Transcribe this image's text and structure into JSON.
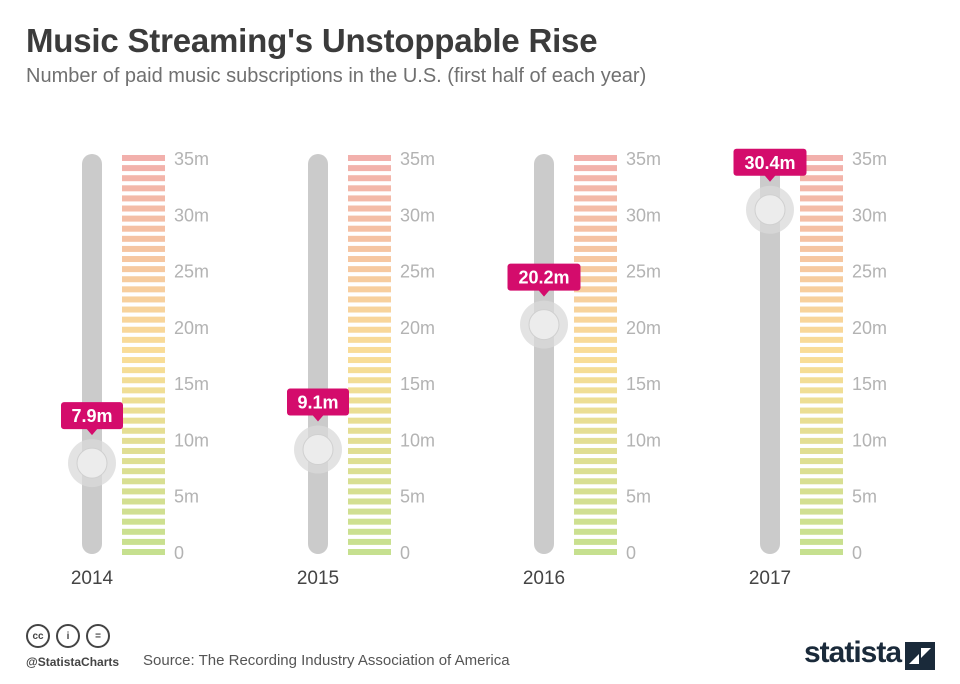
{
  "header": {
    "title": "Music Streaming's Unstoppable Rise",
    "subtitle": "Number of paid music subscriptions in the U.S. (first half of each year)"
  },
  "chart_data": {
    "type": "bar",
    "categories": [
      "2014",
      "2015",
      "2016",
      "2017"
    ],
    "values": [
      7.9,
      9.1,
      20.2,
      30.4
    ],
    "value_labels": [
      "7.9m",
      "9.1m",
      "20.2m",
      "30.4m"
    ],
    "ylim": [
      0,
      35
    ],
    "ticks": [
      0,
      5,
      10,
      15,
      20,
      25,
      30,
      35
    ],
    "tick_labels": [
      "0",
      "5m",
      "10m",
      "15m",
      "20m",
      "25m",
      "30m",
      "35m"
    ],
    "style": "slider",
    "scale_colors": {
      "low": "#c6e08f",
      "mid": "#f9dd97",
      "high": "#f2b0ac"
    },
    "label_color": "#d40c6c",
    "track_color": "#cbcbcb"
  },
  "footer": {
    "cc_icons": [
      "creative-commons-icon",
      "attribution-icon",
      "no-derivatives-icon"
    ],
    "cc_glyphs": [
      "cc",
      "i",
      "="
    ],
    "handle": "@StatistaCharts",
    "source": "Source: The Recording Industry Association of America",
    "brand": "statista"
  }
}
